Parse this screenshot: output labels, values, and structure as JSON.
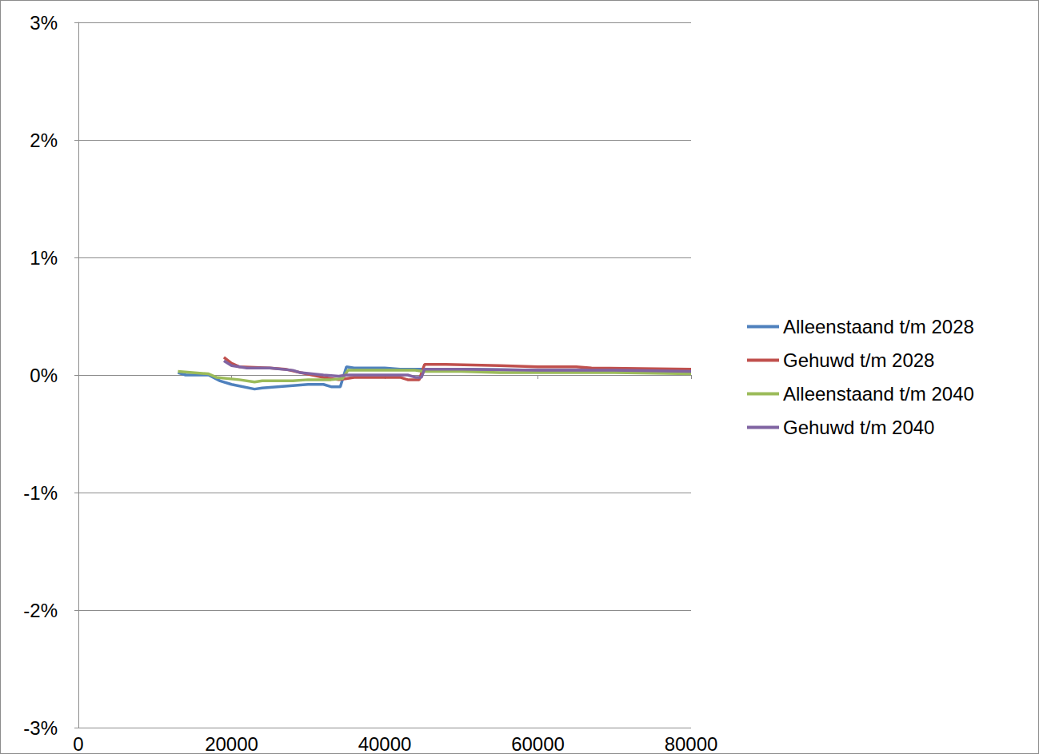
{
  "chart_data": {
    "type": "line",
    "xlim": [
      0,
      80000
    ],
    "xticks": [
      0,
      20000,
      40000,
      60000,
      80000
    ],
    "ylim": [
      -3,
      3
    ],
    "yticks": [
      {
        "value": -3,
        "label": "-3%"
      },
      {
        "value": -2,
        "label": "-2%"
      },
      {
        "value": -1,
        "label": "-1%"
      },
      {
        "value": 0,
        "label": "0%"
      },
      {
        "value": 1,
        "label": "1%"
      },
      {
        "value": 2,
        "label": "2%"
      },
      {
        "value": 3,
        "label": "3%"
      }
    ],
    "grid": true,
    "legend": "right",
    "series": [
      {
        "name": "Alleenstaand t/m 2028",
        "color": "#4f81bd",
        "x": [
          13000,
          14000,
          17000,
          18500,
          20000,
          23000,
          24000,
          26000,
          28000,
          30000,
          32000,
          33000,
          34200,
          35000,
          36000,
          40000,
          42000,
          45000,
          50000,
          60000,
          70000,
          80000
        ],
        "values": [
          0.02,
          0.0,
          0.0,
          -0.05,
          -0.08,
          -0.12,
          -0.11,
          -0.1,
          -0.09,
          -0.08,
          -0.08,
          -0.1,
          -0.1,
          0.07,
          0.06,
          0.06,
          0.05,
          0.05,
          0.05,
          0.04,
          0.04,
          0.03
        ]
      },
      {
        "name": "Gehuwd t/m 2028",
        "color": "#c0504d",
        "x": [
          19000,
          20000,
          21000,
          25000,
          27000,
          29000,
          32000,
          34000,
          35000,
          36000,
          42000,
          43000,
          44500,
          45200,
          48000,
          55000,
          60000,
          65000,
          67000,
          80000
        ],
        "values": [
          0.15,
          0.1,
          0.07,
          0.06,
          0.05,
          0.02,
          -0.02,
          -0.04,
          -0.03,
          -0.02,
          -0.02,
          -0.04,
          -0.04,
          0.09,
          0.09,
          0.08,
          0.07,
          0.07,
          0.06,
          0.05
        ]
      },
      {
        "name": "Alleenstaand t/m 2040",
        "color": "#9bbb59",
        "x": [
          13000,
          17000,
          18000,
          21000,
          23000,
          24000,
          28000,
          30000,
          33000,
          34500,
          35200,
          40000,
          44000,
          45000,
          50000,
          55000,
          60000,
          70000,
          80000
        ],
        "values": [
          0.03,
          0.01,
          -0.02,
          -0.04,
          -0.06,
          -0.05,
          -0.05,
          -0.04,
          -0.04,
          -0.03,
          0.04,
          0.04,
          0.04,
          0.03,
          0.03,
          0.02,
          0.02,
          0.02,
          0.01
        ]
      },
      {
        "name": "Gehuwd t/m 2040",
        "color": "#8064a2",
        "x": [
          19000,
          20000,
          22000,
          25000,
          28000,
          29000,
          32000,
          34000,
          35000,
          43000,
          44000,
          44800,
          45200,
          50000,
          60000,
          70000,
          80000
        ],
        "values": [
          0.12,
          0.08,
          0.06,
          0.06,
          0.04,
          0.02,
          0.0,
          -0.01,
          0.0,
          0.0,
          -0.02,
          -0.02,
          0.05,
          0.05,
          0.04,
          0.04,
          0.03
        ]
      }
    ]
  }
}
